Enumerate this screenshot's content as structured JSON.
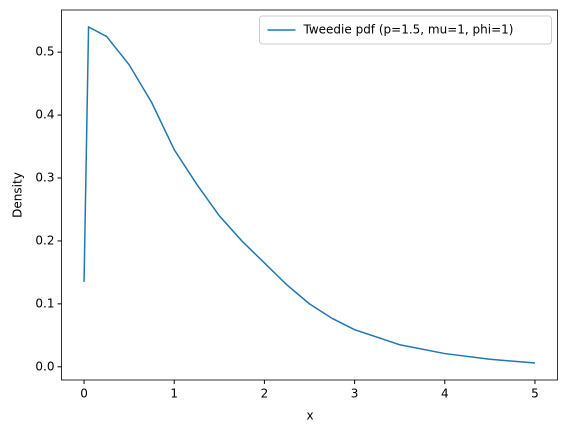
{
  "chart_data": {
    "type": "line",
    "xlabel": "x",
    "ylabel": "Density",
    "x": [
      0,
      0.05,
      0.25,
      0.5,
      0.75,
      1,
      1.25,
      1.5,
      1.75,
      2,
      2.25,
      2.5,
      2.75,
      3,
      3.5,
      4,
      4.5,
      5
    ],
    "series": [
      {
        "name": "Tweedie pdf (p=1.5, mu=1, phi=1)",
        "color": "#1f77b4",
        "values": [
          0.135,
          0.54,
          0.525,
          0.48,
          0.42,
          0.345,
          0.29,
          0.24,
          0.2,
          0.165,
          0.13,
          0.1,
          0.077,
          0.059,
          0.035,
          0.021,
          0.012,
          0.006
        ]
      }
    ],
    "xlim": [
      -0.25,
      5.25
    ],
    "ylim": [
      -0.021,
      0.567
    ],
    "xticks": [
      0,
      1,
      2,
      3,
      4,
      5
    ],
    "yticks": [
      {
        "value": 0,
        "label": "0.0"
      },
      0.1,
      0.2,
      0.3,
      0.4,
      0.5
    ],
    "grid": false,
    "legend": "upper right"
  }
}
